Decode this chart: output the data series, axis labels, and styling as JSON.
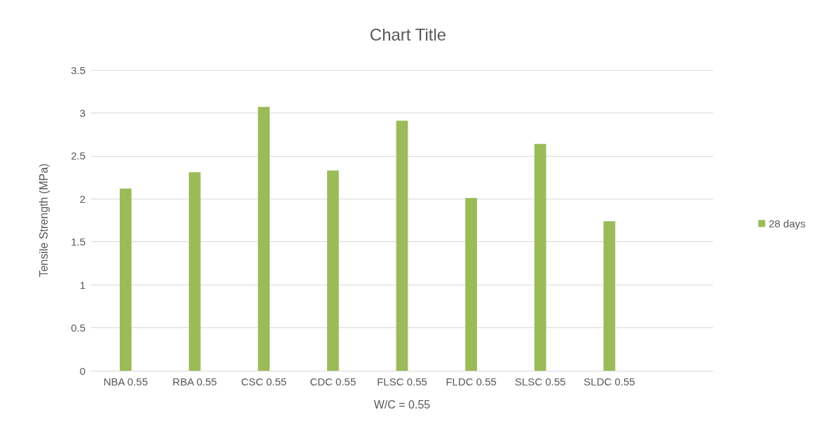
{
  "chart_data": {
    "type": "bar",
    "title": "Chart Title",
    "xlabel": "W/C = 0.55",
    "ylabel": "Tensile Strength (MPa)",
    "categories": [
      "NBA 0.55",
      "RBA 0.55",
      "CSC 0.55",
      "CDC 0.55",
      "FLSC 0.55",
      "FLDC 0.55",
      "SLSC 0.55",
      "SLDC 0.55",
      null
    ],
    "series": [
      {
        "name": "28 days",
        "color": "#9bbb59",
        "values": [
          2.12,
          2.31,
          3.07,
          2.33,
          2.91,
          2.01,
          2.64,
          1.74,
          null
        ]
      }
    ],
    "ylim": [
      0,
      3.5
    ],
    "yticks": [
      0,
      0.5,
      1,
      1.5,
      2,
      2.5,
      3,
      3.5
    ],
    "grid": "y",
    "legend": "right"
  }
}
